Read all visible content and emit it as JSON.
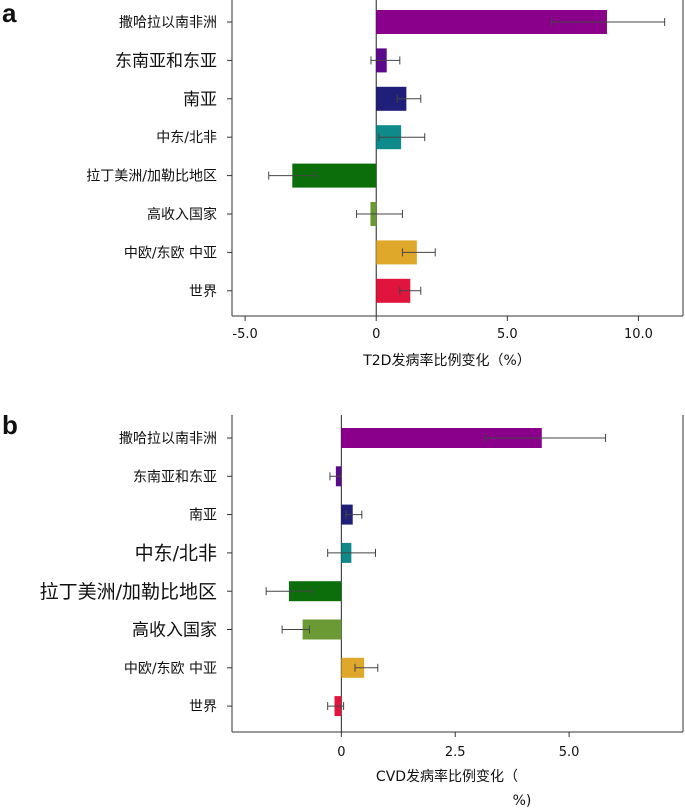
{
  "panels": [
    {
      "letter": "a",
      "categories": [
        "撒哈拉以南非洲",
        "东南亚和东亚",
        "南亚",
        "中东/北非",
        "拉丁美洲/加勒比地区",
        "高收入国家",
        "中欧/东欧 中亚",
        "世界"
      ],
      "label_sizes": [
        14,
        17,
        17,
        14,
        14,
        14,
        14,
        14
      ],
      "colors": [
        "#8b008b",
        "#5a0a8a",
        "#1f1f7a",
        "#0e8a8a",
        "#0b6e0b",
        "#6b9a35",
        "#e0a82a",
        "#e0143c"
      ],
      "chart_data": {
        "type": "bar",
        "orientation": "horizontal",
        "categories": [
          "撒哈拉以南非洲",
          "东南亚和东亚",
          "南亚",
          "中东/北非",
          "拉丁美洲/加勒比地区",
          "高收入国家",
          "中欧/东欧 中亚",
          "世界"
        ],
        "values": [
          8.8,
          0.4,
          1.15,
          0.95,
          -3.2,
          -0.22,
          1.55,
          1.3
        ],
        "err_low": [
          6.7,
          -0.2,
          0.8,
          0.1,
          -4.1,
          -0.75,
          1.0,
          0.9
        ],
        "err_high": [
          11.0,
          0.9,
          1.7,
          1.85,
          -2.3,
          1.0,
          2.25,
          1.7
        ],
        "xticks": [
          -5.0,
          0,
          5.0,
          10.0
        ],
        "xtick_labels": [
          "-5.0",
          "0",
          "5.0",
          "10.0"
        ],
        "xlim": [
          -5.5,
          11.7
        ],
        "xlabel": "T2D发病率比例变化（%）",
        "ylabel": ""
      }
    },
    {
      "letter": "b",
      "categories": [
        "撒哈拉以南非洲",
        "东南亚和东亚",
        "南亚",
        "中东/北非",
        "拉丁美洲/加勒比地区",
        "高收入国家",
        "中欧/东欧 中亚",
        "世界"
      ],
      "label_sizes": [
        14,
        14,
        14,
        19,
        19,
        17,
        14,
        14
      ],
      "colors": [
        "#8b008b",
        "#5a0a8a",
        "#1f1f7a",
        "#0e8a8a",
        "#0b6e0b",
        "#6b9a35",
        "#e0a82a",
        "#e0143c"
      ],
      "chart_data": {
        "type": "bar",
        "orientation": "horizontal",
        "categories": [
          "撒哈拉以南非洲",
          "东南亚和东亚",
          "南亚",
          "中东/北非",
          "拉丁美洲/加勒比地区",
          "高收入国家",
          "中欧/东欧 中亚",
          "世界"
        ],
        "values": [
          4.4,
          -0.12,
          0.25,
          0.22,
          -1.15,
          -0.85,
          0.5,
          -0.15
        ],
        "err_low": [
          3.15,
          -0.25,
          0.1,
          -0.3,
          -1.65,
          -1.3,
          0.3,
          -0.3
        ],
        "err_high": [
          5.8,
          0.0,
          0.45,
          0.75,
          -0.65,
          -0.7,
          0.8,
          0.05
        ],
        "xticks": [
          0,
          2.5,
          5.0
        ],
        "xtick_labels": [
          "0",
          "2.5",
          "5.0"
        ],
        "xlim": [
          -2.4,
          7.5
        ],
        "xlabel": "CVD发病率比例变化（",
        "xlabel_line2": "%)",
        "ylabel": ""
      }
    }
  ]
}
